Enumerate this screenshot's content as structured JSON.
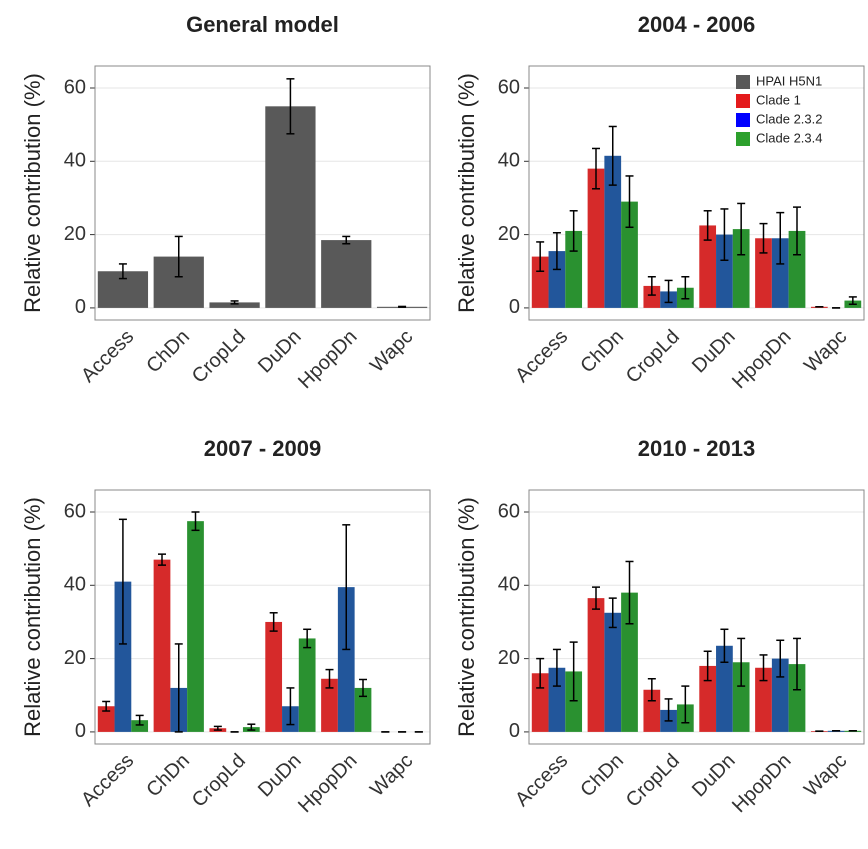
{
  "chart_data": [
    {
      "type": "bar",
      "title": "General model",
      "y_label": "Relative contribution (%)",
      "categories": [
        "Access",
        "ChDn",
        "CropLd",
        "DuDn",
        "HpopDn",
        "Wapc"
      ],
      "ylim": [
        -3.3,
        66
      ],
      "yticks": [
        0,
        20,
        40,
        60
      ],
      "grid": true,
      "series": [
        {
          "color": "#595959",
          "values": [
            10,
            14,
            1.5,
            55,
            18.5,
            0.3
          ],
          "errors": [
            2,
            5.5,
            0.4,
            7.5,
            1,
            0.1
          ]
        }
      ]
    },
    {
      "type": "bar",
      "title": "2004 - 2006",
      "y_label": "Relative contribution (%)",
      "categories": [
        "Access",
        "ChDn",
        "CropLd",
        "DuDn",
        "HpopDn",
        "Wapc"
      ],
      "ylim": [
        -3.3,
        66
      ],
      "yticks": [
        0,
        20,
        40,
        60
      ],
      "grid": true,
      "legend": [
        {
          "name": "HPAI H5N1",
          "color": "#595959"
        },
        {
          "name": "Clade 1",
          "color": "#e41a1c"
        },
        {
          "name": "Clade 2.3.2",
          "color": "#0000ff"
        },
        {
          "name": "Clade 2.3.4",
          "color": "#2ca02c"
        }
      ],
      "series": [
        {
          "color": "#d62a2a",
          "values": [
            14,
            38,
            6,
            22.5,
            19,
            0.3
          ],
          "errors": [
            4,
            5.5,
            2.5,
            4,
            4,
            0
          ]
        },
        {
          "color": "#22569b",
          "values": [
            15.5,
            41.5,
            4.5,
            20,
            19,
            0
          ],
          "errors": [
            5,
            8,
            3,
            7,
            7,
            0
          ]
        },
        {
          "color": "#2a9130",
          "values": [
            21,
            29,
            5.5,
            21.5,
            21,
            2
          ],
          "errors": [
            5.5,
            7,
            3,
            7,
            6.5,
            1
          ]
        }
      ]
    },
    {
      "type": "bar",
      "title": "2007 - 2009",
      "y_label": "Relative contribution (%)",
      "categories": [
        "Access",
        "ChDn",
        "CropLd",
        "DuDn",
        "HpopDn",
        "Wapc"
      ],
      "ylim": [
        -3.3,
        66
      ],
      "yticks": [
        0,
        20,
        40,
        60
      ],
      "grid": true,
      "series": [
        {
          "color": "#d62a2a",
          "values": [
            7,
            47,
            1,
            30,
            14.5,
            0
          ],
          "errors": [
            1.3,
            1.5,
            0.5,
            2.5,
            2.5,
            0
          ]
        },
        {
          "color": "#22569b",
          "values": [
            41,
            12,
            0,
            7,
            39.5,
            0
          ],
          "errors": [
            17,
            12,
            0,
            5,
            17,
            0
          ]
        },
        {
          "color": "#2a9130",
          "values": [
            3.2,
            57.5,
            1.3,
            25.5,
            12,
            0
          ],
          "errors": [
            1.3,
            2.5,
            0.8,
            2.5,
            2.3,
            0
          ]
        }
      ]
    },
    {
      "type": "bar",
      "title": "2010 - 2013",
      "y_label": "Relative contribution (%)",
      "categories": [
        "Access",
        "ChDn",
        "CropLd",
        "DuDn",
        "HpopDn",
        "Wapc"
      ],
      "ylim": [
        -3.3,
        66
      ],
      "yticks": [
        0,
        20,
        40,
        60
      ],
      "grid": true,
      "series": [
        {
          "color": "#d62a2a",
          "values": [
            16,
            36.5,
            11.5,
            18,
            17.5,
            0.2
          ],
          "errors": [
            4,
            3,
            3,
            4,
            3.5,
            0
          ]
        },
        {
          "color": "#22569b",
          "values": [
            17.5,
            32.5,
            6,
            23.5,
            20,
            0.3
          ],
          "errors": [
            5,
            4,
            3,
            4.5,
            5,
            0
          ]
        },
        {
          "color": "#2a9130",
          "values": [
            16.5,
            38,
            7.5,
            19,
            18.5,
            0.3
          ],
          "errors": [
            8,
            8.5,
            5,
            6.5,
            7,
            0
          ]
        }
      ]
    }
  ]
}
